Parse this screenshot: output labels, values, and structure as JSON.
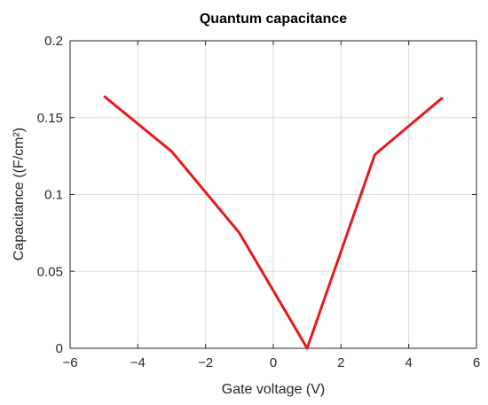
{
  "chart_data": {
    "type": "line",
    "title": "Quantum capacitance",
    "xlabel": "Gate voltage (V)",
    "ylabel": "Capacitance ((F/cm²)",
    "xlim": [
      -6,
      6
    ],
    "ylim": [
      0,
      0.2
    ],
    "xticks": [
      -6,
      -4,
      -2,
      0,
      2,
      4,
      6
    ],
    "xtick_labels": [
      "−6",
      "−4",
      "−2",
      "0",
      "2",
      "4",
      "6"
    ],
    "yticks": [
      0,
      0.05,
      0.1,
      0.15,
      0.2
    ],
    "ytick_labels": [
      "0",
      "0.05",
      "0.1",
      "0.15",
      "0.2"
    ],
    "grid": true,
    "series": [
      {
        "x": [
          -5,
          -3,
          -1,
          1,
          3,
          5
        ],
        "y": [
          0.164,
          0.128,
          0.075,
          0.0,
          0.126,
          0.163
        ],
        "color": "#e8191b"
      }
    ]
  }
}
